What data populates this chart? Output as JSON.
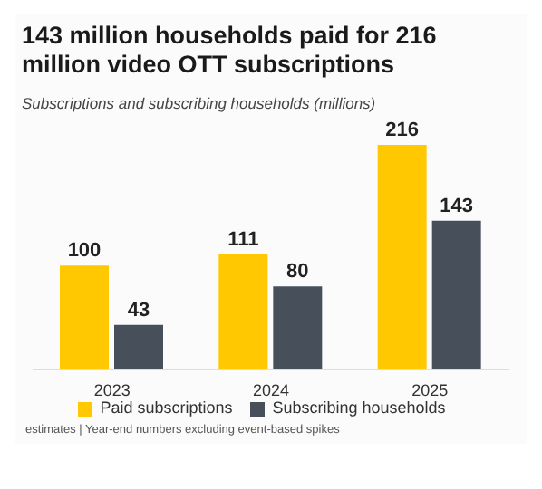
{
  "chart_data": {
    "type": "bar",
    "title": "143 million households paid for 216 million video OTT subscriptions",
    "subtitle": "Subscriptions and subscribing households (millions)",
    "categories": [
      "2023",
      "2024",
      "2025"
    ],
    "series": [
      {
        "name": "Paid subscriptions",
        "color": "#ffc800",
        "values": [
          100,
          111,
          216
        ]
      },
      {
        "name": "Subscribing households",
        "color": "#47505a",
        "values": [
          43,
          80,
          143
        ]
      }
    ],
    "data_labels": true,
    "legend": "bottom",
    "annotations": [
      "estimates | Year-end numbers excluding event-based spikes"
    ]
  }
}
